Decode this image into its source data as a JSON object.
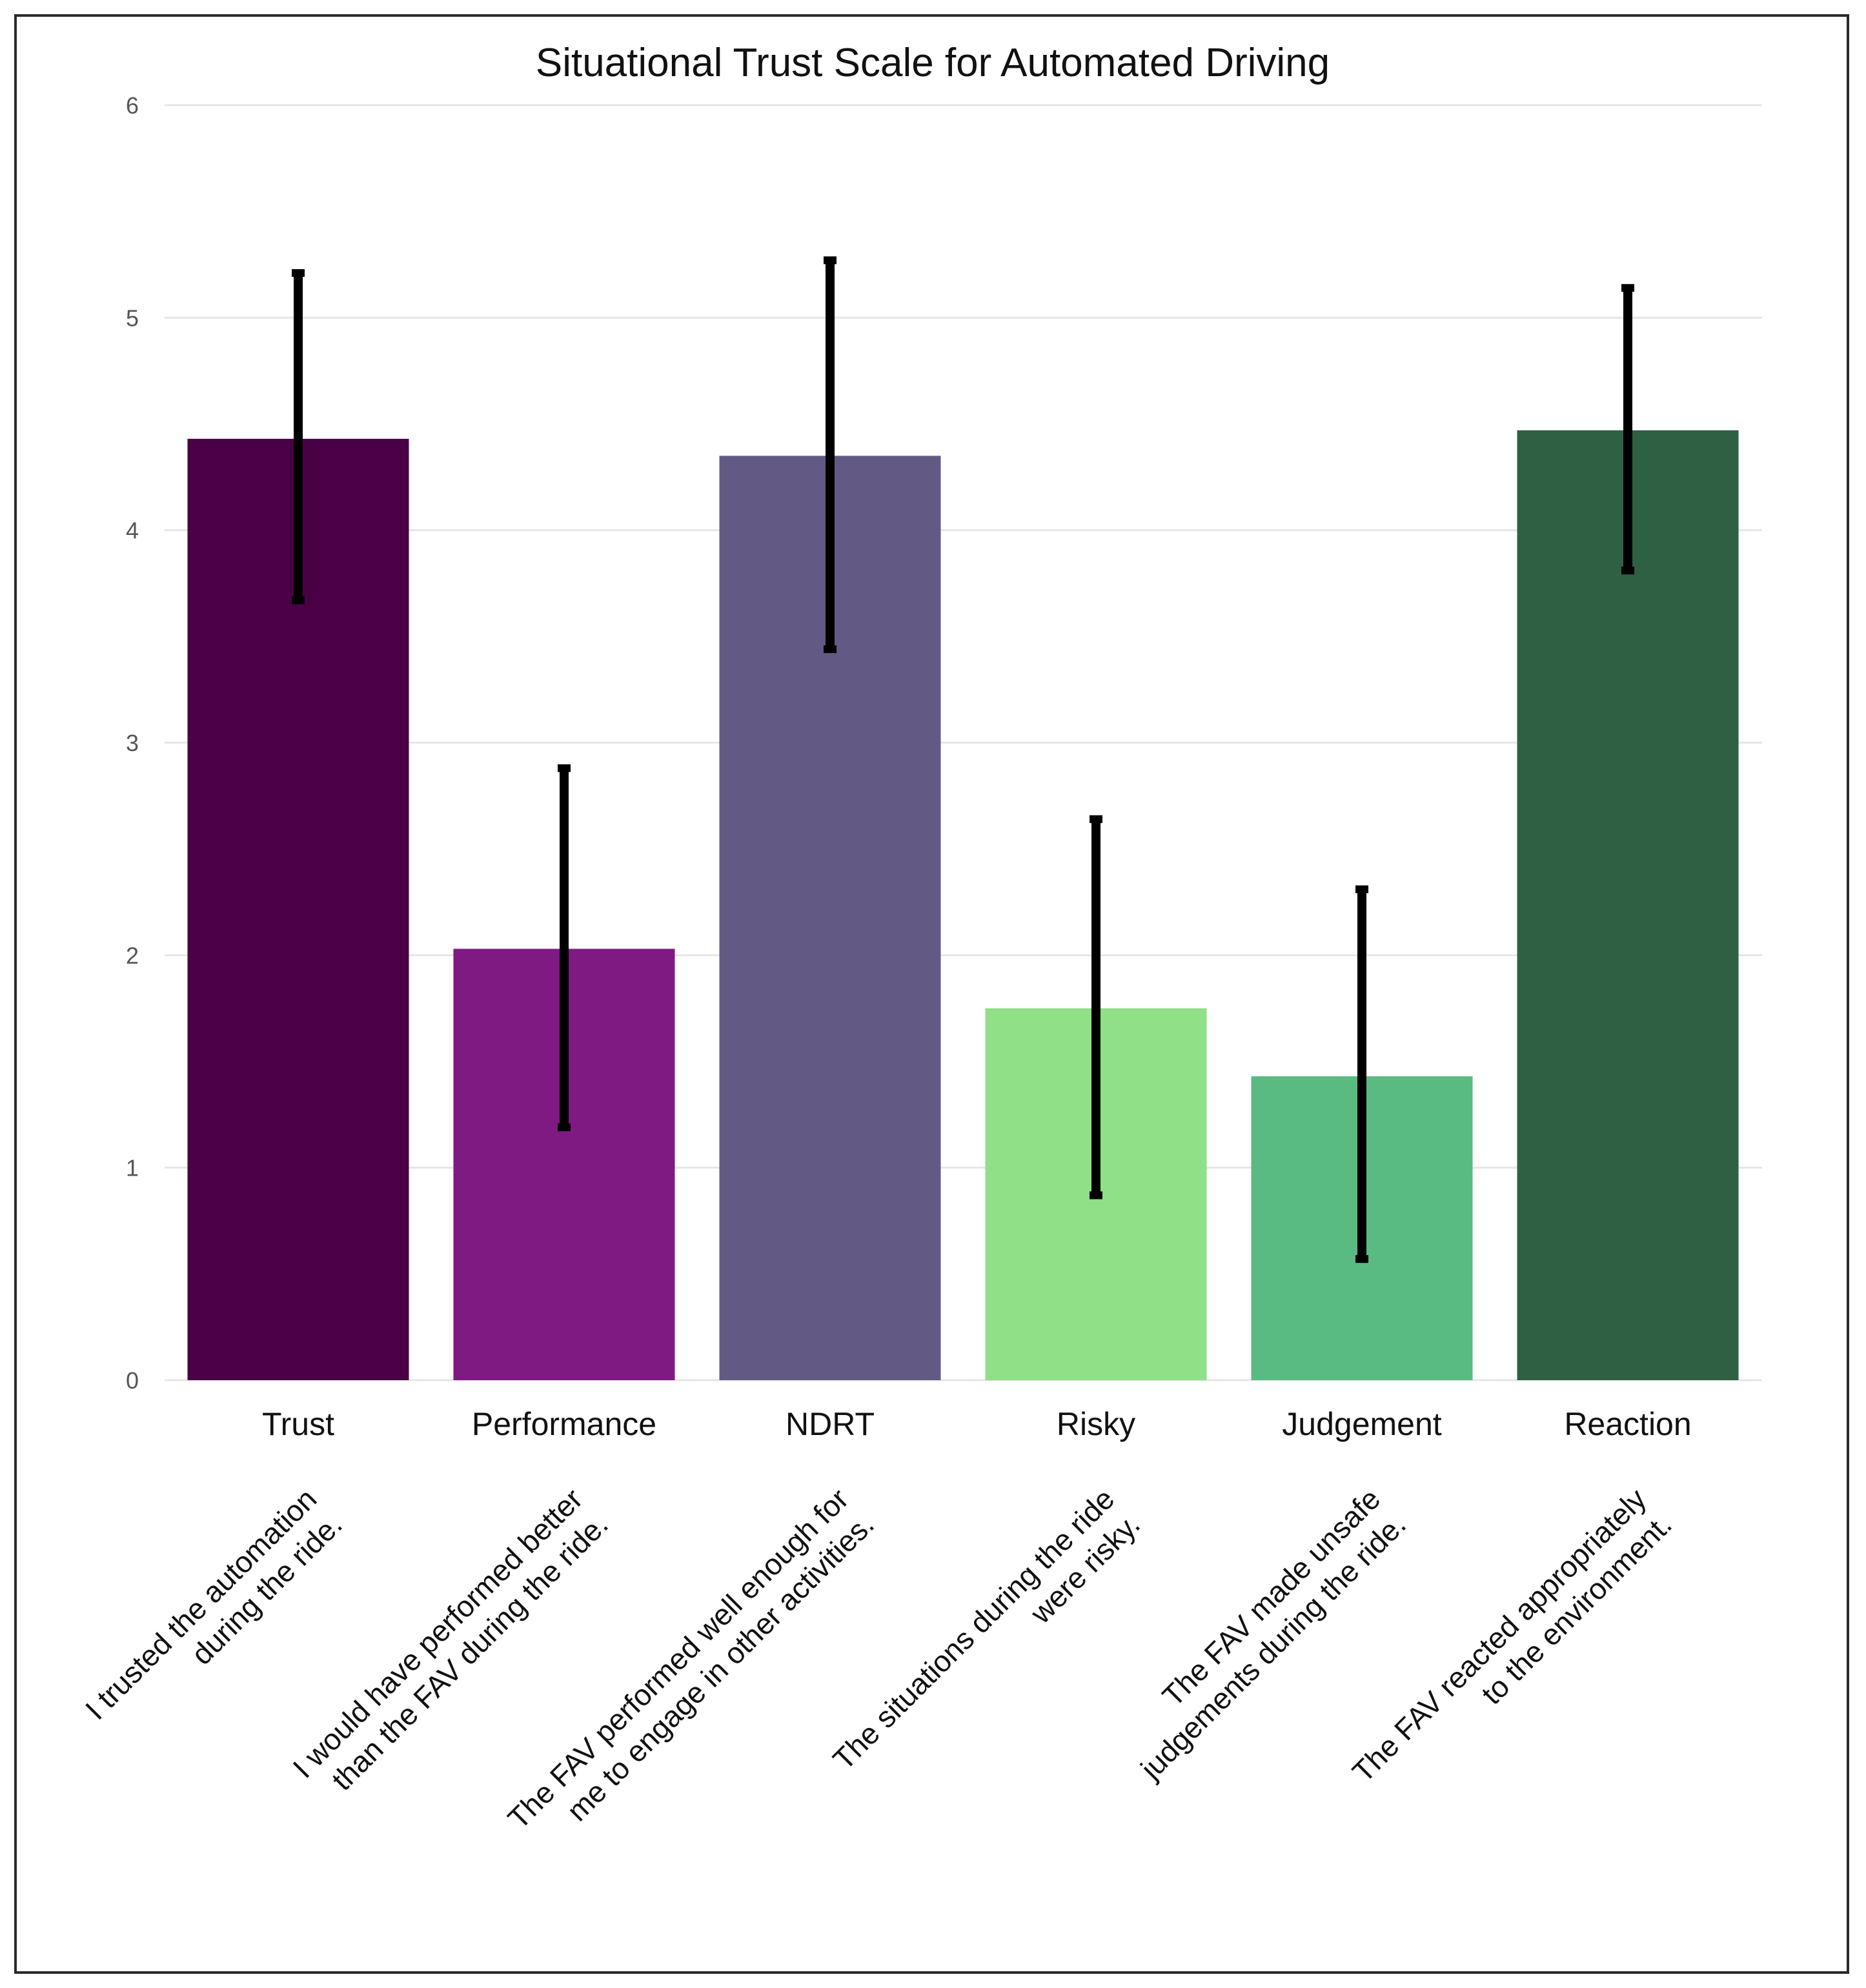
{
  "chart_data": {
    "type": "bar",
    "title": "Situational Trust Scale for Automated Driving",
    "xlabel": "",
    "ylabel": "",
    "ylim": [
      0,
      6
    ],
    "yticks": [
      "0",
      "1",
      "2",
      "3",
      "4",
      "5",
      "6"
    ],
    "grid": true,
    "categories": [
      "Trust",
      "Performance",
      "NDRT",
      "Risky",
      "Judgement",
      "Reaction"
    ],
    "values": [
      4.43,
      2.03,
      4.35,
      1.75,
      1.43,
      4.47
    ],
    "error_low": [
      3.67,
      1.19,
      3.44,
      0.87,
      0.57,
      3.81
    ],
    "error_high": [
      5.21,
      2.88,
      5.27,
      2.64,
      2.31,
      5.14
    ],
    "colors": [
      "#4a0044",
      "#7f1a82",
      "#625a84",
      "#8fe087",
      "#5abb82",
      "#2e6044"
    ],
    "descriptions": [
      [
        "I trusted the automation",
        "during the ride."
      ],
      [
        "I would have performed better",
        "than the FAV during the ride."
      ],
      [
        "The FAV performed well enough for",
        "me to engage in other activities."
      ],
      [
        "The situations during the ride",
        "were risky."
      ],
      [
        "The FAV made unsafe",
        "judgements during the ride."
      ],
      [
        "The FAV reacted appropriately",
        "to the environment."
      ]
    ]
  }
}
